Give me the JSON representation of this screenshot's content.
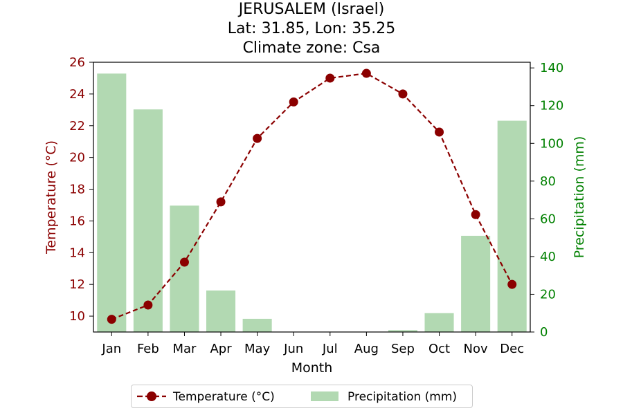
{
  "chart_data": {
    "type": "bar+line",
    "title_lines": [
      "JERUSALEM (Israel)",
      "Lat: 31.85, Lon: 35.25",
      "Climate zone: Csa"
    ],
    "xlabel": "Month",
    "categories": [
      "Jan",
      "Feb",
      "Mar",
      "Apr",
      "May",
      "Jun",
      "Jul",
      "Aug",
      "Sep",
      "Oct",
      "Nov",
      "Dec"
    ],
    "series": [
      {
        "name": "Temperature (°C)",
        "axis": "left",
        "kind": "line",
        "style": "dashed",
        "marker": "circle",
        "color": "#8b0000",
        "values": [
          9.8,
          10.7,
          13.4,
          17.2,
          21.2,
          23.5,
          25.0,
          25.3,
          24.0,
          21.6,
          16.4,
          12.0
        ]
      },
      {
        "name": "Precipitation (mm)",
        "axis": "right",
        "kind": "bar",
        "color": "#b2d9b2",
        "values": [
          137,
          118,
          67,
          22,
          7,
          0,
          0,
          0,
          1,
          10,
          51,
          112
        ]
      }
    ],
    "left_axis": {
      "label": "Temperature (°C)",
      "color": "#8b0000",
      "ylim": [
        9.0,
        26.0
      ],
      "ticks": [
        10,
        12,
        14,
        16,
        18,
        20,
        22,
        24,
        26
      ]
    },
    "right_axis": {
      "label": "Precipitation (mm)",
      "color": "#008000",
      "ylim": [
        0,
        143
      ],
      "ticks": [
        0,
        20,
        40,
        60,
        80,
        100,
        120,
        140
      ]
    },
    "grid": false,
    "legend": {
      "placement": "bottom-center",
      "entries": [
        "Temperature (°C)",
        "Precipitation (mm)"
      ]
    }
  }
}
